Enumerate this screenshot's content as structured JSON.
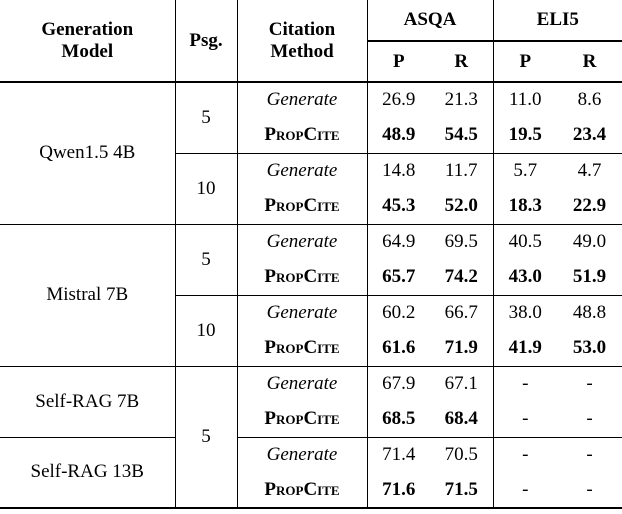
{
  "table": {
    "header": {
      "generation_model": "Generation\nModel",
      "psg": "Psg.",
      "citation_method": "Citation\nMethod",
      "asqa": "ASQA",
      "eli5": "ELI5",
      "p": "P",
      "r": "R"
    },
    "groups": [
      {
        "model": "Qwen1.5 4B",
        "blocks": [
          {
            "psg": "5",
            "rows": [
              {
                "method": "Generate",
                "asqa_p": "26.9",
                "asqa_r": "21.3",
                "eli5_p": "11.0",
                "eli5_r": "8.6"
              },
              {
                "method": "PropCite",
                "asqa_p": "48.9",
                "asqa_r": "54.5",
                "eli5_p": "19.5",
                "eli5_r": "23.4"
              }
            ]
          },
          {
            "psg": "10",
            "rows": [
              {
                "method": "Generate",
                "asqa_p": "14.8",
                "asqa_r": "11.7",
                "eli5_p": "5.7",
                "eli5_r": "4.7"
              },
              {
                "method": "PropCite",
                "asqa_p": "45.3",
                "asqa_r": "52.0",
                "eli5_p": "18.3",
                "eli5_r": "22.9"
              }
            ]
          }
        ]
      },
      {
        "model": "Mistral 7B",
        "blocks": [
          {
            "psg": "5",
            "rows": [
              {
                "method": "Generate",
                "asqa_p": "64.9",
                "asqa_r": "69.5",
                "eli5_p": "40.5",
                "eli5_r": "49.0"
              },
              {
                "method": "PropCite",
                "asqa_p": "65.7",
                "asqa_r": "74.2",
                "eli5_p": "43.0",
                "eli5_r": "51.9"
              }
            ]
          },
          {
            "psg": "10",
            "rows": [
              {
                "method": "Generate",
                "asqa_p": "60.2",
                "asqa_r": "66.7",
                "eli5_p": "38.0",
                "eli5_r": "48.8"
              },
              {
                "method": "PropCite",
                "asqa_p": "61.6",
                "asqa_r": "71.9",
                "eli5_p": "41.9",
                "eli5_r": "53.0"
              }
            ]
          }
        ]
      },
      {
        "model": "Self-RAG 7B",
        "blocks": [
          {
            "psg": "5",
            "rows": [
              {
                "method": "Generate",
                "asqa_p": "67.9",
                "asqa_r": "67.1",
                "eli5_p": "-",
                "eli5_r": "-"
              },
              {
                "method": "PropCite",
                "asqa_p": "68.5",
                "asqa_r": "68.4",
                "eli5_p": "-",
                "eli5_r": "-"
              }
            ]
          }
        ]
      },
      {
        "model": "Self-RAG 13B",
        "blocks": [
          {
            "rows": [
              {
                "method": "Generate",
                "asqa_p": "71.4",
                "asqa_r": "70.5",
                "eli5_p": "-",
                "eli5_r": "-"
              },
              {
                "method": "PropCite",
                "asqa_p": "71.6",
                "asqa_r": "71.5",
                "eli5_p": "-",
                "eli5_r": "-"
              }
            ]
          }
        ]
      }
    ]
  },
  "colors": {
    "text": "#000000",
    "background": "#ffffff",
    "rule": "#000000"
  }
}
